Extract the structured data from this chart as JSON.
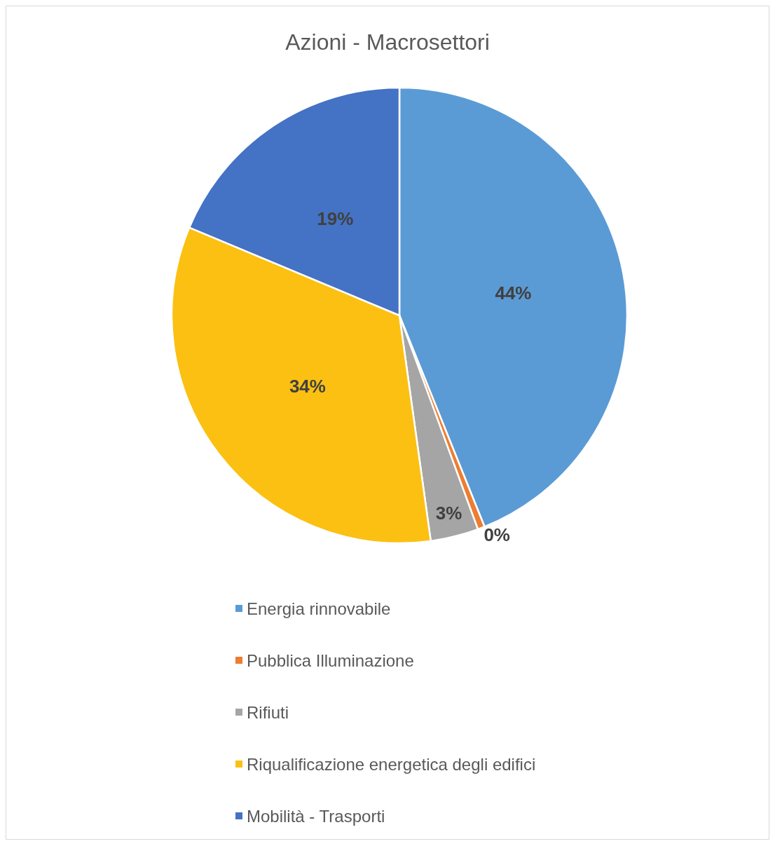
{
  "chart_data": {
    "type": "pie",
    "title": "Azioni - Macrosettori",
    "categories": [
      "Energia rinnovabile",
      "Pubblica Illuminazione",
      "Rifiuti",
      "Riqualificazione energetica degli edifici",
      "Mobilità - Trasporti"
    ],
    "values": [
      43.9,
      0.5,
      3.4,
      33.5,
      18.7
    ],
    "colors": [
      "#5b9bd5",
      "#ed7d31",
      "#a5a5a5",
      "#fbc012",
      "#4472c4"
    ],
    "value_labels": [
      "44%",
      "0%",
      "3%",
      "34%",
      "19%"
    ],
    "legend": "bottom"
  }
}
